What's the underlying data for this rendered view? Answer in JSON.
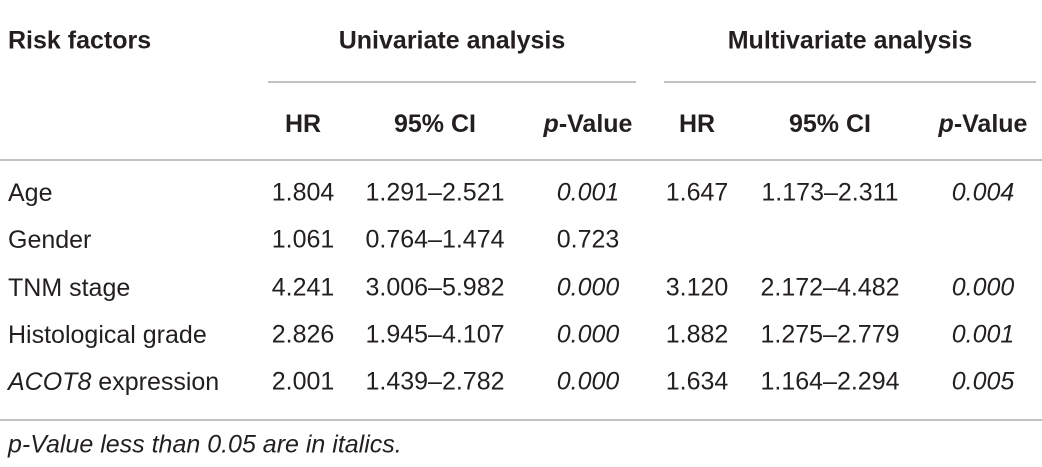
{
  "header": {
    "title": "Risk factors",
    "groups": [
      "Univariate analysis",
      "Multivariate analysis"
    ],
    "columns": [
      [
        {
          "text": "HR"
        }
      ],
      [
        {
          "text": "95% CI"
        }
      ],
      [
        {
          "text": "p",
          "italic": true
        },
        {
          "text": "-Value"
        }
      ],
      [
        {
          "text": "HR"
        }
      ],
      [
        {
          "text": "95% CI"
        }
      ],
      [
        {
          "text": "p",
          "italic": true
        },
        {
          "text": "-Value"
        }
      ]
    ]
  },
  "table": {
    "rows": [
      {
        "label": [
          {
            "text": "Age"
          }
        ],
        "cells": [
          {
            "text": "1.804"
          },
          {
            "text": "1.291–2.521"
          },
          {
            "text": "0.001",
            "italic": true
          },
          {
            "text": "1.647"
          },
          {
            "text": "1.173–2.311"
          },
          {
            "text": "0.004",
            "italic": true
          }
        ]
      },
      {
        "label": [
          {
            "text": "Gender"
          }
        ],
        "cells": [
          {
            "text": "1.061"
          },
          {
            "text": "0.764–1.474"
          },
          {
            "text": "0.723"
          },
          null,
          null,
          null
        ]
      },
      {
        "label": [
          {
            "text": "TNM stage"
          }
        ],
        "cells": [
          {
            "text": "4.241"
          },
          {
            "text": "3.006–5.982"
          },
          {
            "text": "0.000",
            "italic": true
          },
          {
            "text": "3.120"
          },
          {
            "text": "2.172–4.482"
          },
          {
            "text": "0.000",
            "italic": true
          }
        ]
      },
      {
        "label": [
          {
            "text": "Histological grade"
          }
        ],
        "cells": [
          {
            "text": "2.826"
          },
          {
            "text": "1.945–4.107"
          },
          {
            "text": "0.000",
            "italic": true
          },
          {
            "text": "1.882"
          },
          {
            "text": "1.275–2.779"
          },
          {
            "text": "0.001",
            "italic": true
          }
        ]
      },
      {
        "label": [
          {
            "text": "ACOT8",
            "italic": true
          },
          {
            "text": " expression"
          }
        ],
        "cells": [
          {
            "text": "2.001"
          },
          {
            "text": "1.439–2.782"
          },
          {
            "text": "0.000",
            "italic": true
          },
          {
            "text": "1.634"
          },
          {
            "text": "1.164–2.294"
          },
          {
            "text": "0.005",
            "italic": true
          }
        ]
      }
    ]
  },
  "footnote": "p-Value less than 0.05 are in italics."
}
